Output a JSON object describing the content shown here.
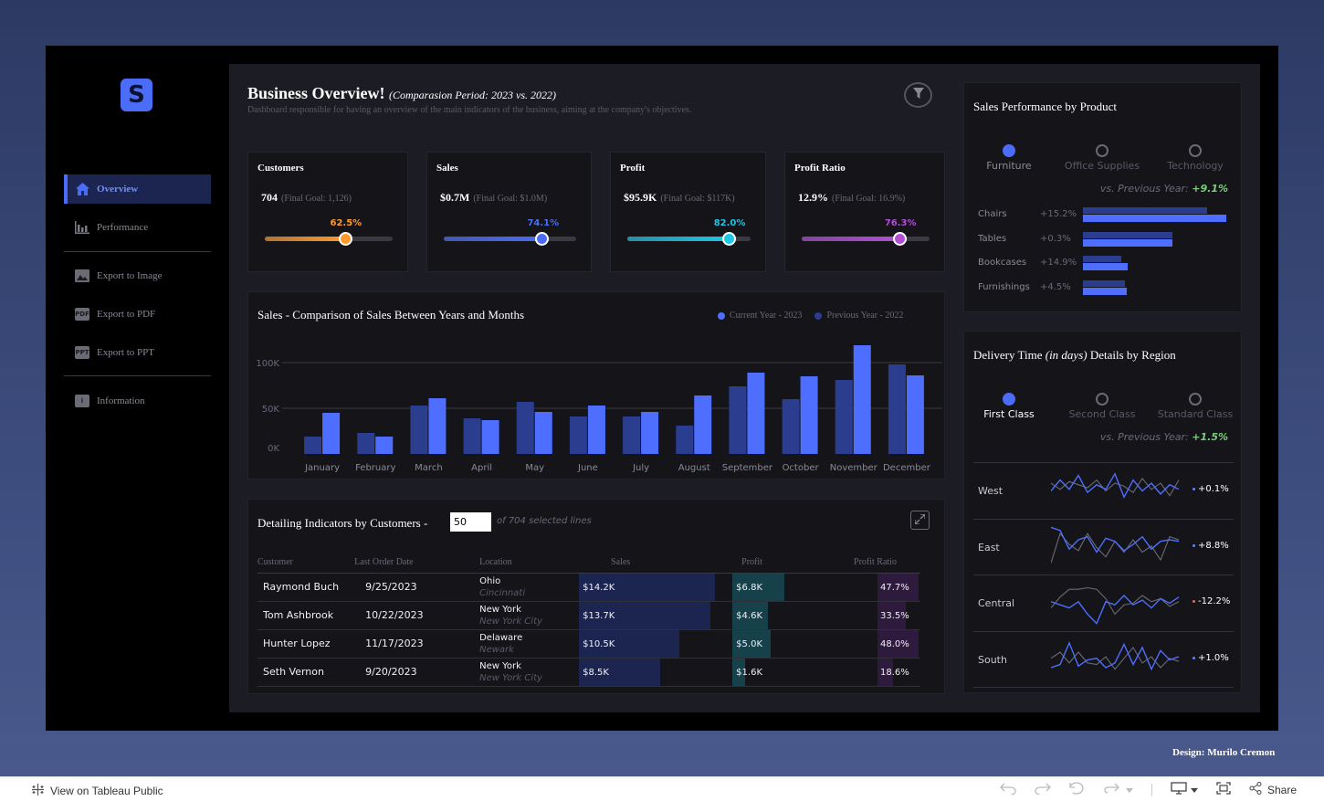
{
  "nav": {
    "logo": "S",
    "items": [
      "Overview",
      "Performance",
      "Export to Image",
      "Export to PDF",
      "Export to PPT",
      "Information"
    ],
    "badges": {
      "pdf": "PDF",
      "ppt": "PPT",
      "info": "i"
    }
  },
  "header": {
    "title": "Business Overview!",
    "period": "(Comparasion Period: 2023 vs. 2022)",
    "subtitle": "Dashboard responsible for having an overview of the main indicators of the business, aiming at the company's objectives."
  },
  "kpis": [
    {
      "name": "Customers",
      "value": "704",
      "goal": "(Final Goal: 1,126)",
      "pct_label": "62.5%",
      "pct": 0.625,
      "color": "#ff9a2e"
    },
    {
      "name": "Sales",
      "value": "$0.7M",
      "goal": "(Final Goal: $1.0M)",
      "pct_label": "74.1%",
      "pct": 0.741,
      "color": "#4a6cf7"
    },
    {
      "name": "Profit",
      "value": "$95.9K",
      "goal": "(Final Goal: $117K)",
      "pct_label": "82.0%",
      "pct": 0.82,
      "color": "#1fc6e6"
    },
    {
      "name": "Profit Ratio",
      "value": "12.9%",
      "goal": "(Final Goal: 16.9%)",
      "pct_label": "76.3%",
      "pct": 0.763,
      "color": "#b04fd6"
    }
  ],
  "sales_chart": {
    "title": "Sales - Comparison of Sales Between Years and Months",
    "legend_current": "Current Year - 2023",
    "legend_previous": "Previous Year - 2022"
  },
  "chart_data": {
    "type": "bar",
    "categories": [
      "January",
      "February",
      "March",
      "April",
      "May",
      "June",
      "July",
      "August",
      "September",
      "October",
      "November",
      "December"
    ],
    "series": [
      {
        "name": "Previous Year - 2022",
        "values": [
          19,
          23,
          53,
          39,
          57,
          41,
          41,
          31,
          74,
          60,
          81,
          98
        ],
        "color": "#2b3d8f"
      },
      {
        "name": "Current Year - 2023",
        "values": [
          45,
          19,
          61,
          37,
          46,
          53,
          46,
          64,
          89,
          85,
          119,
          86
        ],
        "color": "#4d6eff"
      }
    ],
    "yticks": [
      "0K",
      "50K",
      "100K"
    ],
    "ylim": [
      0,
      120
    ]
  },
  "customers": {
    "title": "Detailing Indicators by Customers -",
    "rows_input": "50",
    "selected_text": "of 704 selected lines",
    "columns": [
      "Customer",
      "Last Order Date",
      "Location",
      "Sales",
      "Profit",
      "Profit Ratio"
    ],
    "rows": [
      {
        "name": "Raymond Buch",
        "date": "9/25/2023",
        "state": "Ohio",
        "city": "Cincinnati",
        "sales": "$14.2K",
        "sales_v": 14.2,
        "profit": "$6.8K",
        "profit_v": 6.8,
        "ratio": "47.7%",
        "ratio_v": 47.7
      },
      {
        "name": "Tom Ashbrook",
        "date": "10/22/2023",
        "state": "New York",
        "city": "New York City",
        "sales": "$13.7K",
        "sales_v": 13.7,
        "profit": "$4.6K",
        "profit_v": 4.6,
        "ratio": "33.5%",
        "ratio_v": 33.5
      },
      {
        "name": "Hunter Lopez",
        "date": "11/17/2023",
        "state": "Delaware",
        "city": "Newark",
        "sales": "$10.5K",
        "sales_v": 10.5,
        "profit": "$5.0K",
        "profit_v": 5.0,
        "ratio": "48.0%",
        "ratio_v": 48.0
      },
      {
        "name": "Seth Vernon",
        "date": "9/20/2023",
        "state": "New York",
        "city": "New York City",
        "sales": "$8.5K",
        "sales_v": 8.5,
        "profit": "$1.6K",
        "profit_v": 1.6,
        "ratio": "18.6%",
        "ratio_v": 18.6
      }
    ]
  },
  "product": {
    "title": "Sales Performance by Product",
    "options": [
      "Furniture",
      "Office Supplies",
      "Technology"
    ],
    "selected": 0,
    "vs_label": "vs. Previous Year:",
    "vs_value": "+9.1%",
    "rows": [
      {
        "name": "Chairs",
        "pct": "+15.2%",
        "prev": 136,
        "cur": 157
      },
      {
        "name": "Tables",
        "pct": "+0.3%",
        "prev": 98,
        "cur": 98
      },
      {
        "name": "Bookcases",
        "pct": "+14.9%",
        "prev": 42,
        "cur": 49
      },
      {
        "name": "Furnishings",
        "pct": "+4.5%",
        "prev": 46,
        "cur": 48
      }
    ]
  },
  "delivery": {
    "title_a": "Delivery Time ",
    "title_b": "(in days)",
    "title_c": " Details by Region",
    "options": [
      "First Class",
      "Second Class",
      "Standard Class"
    ],
    "selected": 0,
    "vs_label": "vs. Previous Year:",
    "vs_value": "+1.5%",
    "regions": [
      {
        "name": "West",
        "pct": "+0.1%",
        "cur": [
          2.5,
          3.2,
          2.6,
          3.5,
          2.4,
          2.9,
          2.6,
          3.6,
          2.1,
          3.2,
          2.5,
          3.0,
          2.3,
          2.9,
          2.6
        ],
        "prev": [
          3.0,
          2.6,
          3.1,
          2.9,
          2.7,
          3.2,
          2.5,
          3.0,
          2.8,
          2.4,
          3.3,
          2.6,
          3.0,
          2.2,
          3.2
        ],
        "dot_color": "#5c86ff"
      },
      {
        "name": "East",
        "pct": "+8.8%",
        "cur": [
          3.8,
          3.6,
          2.4,
          3.0,
          3.2,
          2.2,
          3.1,
          2.9,
          2.3,
          2.7,
          3.2,
          2.4,
          2.9,
          3.0,
          2.9
        ],
        "prev": [
          1.5,
          3.4,
          2.7,
          2.3,
          3.4,
          2.5,
          1.9,
          2.9,
          2.2,
          3.0,
          2.2,
          2.6,
          1.7,
          3.2,
          3.0
        ],
        "dot_color": "#5c86ff"
      },
      {
        "name": "Central",
        "pct": "-12.2%",
        "cur": [
          2.6,
          2.4,
          2.2,
          2.6,
          1.8,
          1.2,
          2.6,
          2.4,
          3.0,
          2.4,
          2.7,
          2.2,
          2.8,
          2.5,
          2.9
        ],
        "prev": [
          2.2,
          2.9,
          3.4,
          3.4,
          3.5,
          3.4,
          2.8,
          1.8,
          2.4,
          2.5,
          3.0,
          2.6,
          2.8,
          2.3,
          2.6
        ],
        "dot_color": "#e06c5a"
      },
      {
        "name": "South",
        "pct": "+1.0%",
        "cur": [
          2.0,
          2.2,
          3.6,
          2.1,
          2.5,
          2.6,
          2.0,
          2.3,
          3.5,
          2.2,
          3.3,
          1.9,
          3.1,
          2.5,
          2.7
        ],
        "prev": [
          2.6,
          3.0,
          2.3,
          3.0,
          2.3,
          2.2,
          2.7,
          1.9,
          2.6,
          3.3,
          2.3,
          2.7,
          2.0,
          2.6,
          2.4
        ],
        "dot_color": "#5c86ff"
      }
    ]
  },
  "footer": {
    "credit": "Design: Murilo Cremon",
    "view_label": "View on Tableau Public",
    "share_label": "Share"
  },
  "colors": {
    "accent": "#4a6cf7",
    "positive": "#7ad07a",
    "negative": "#e06c5a"
  }
}
